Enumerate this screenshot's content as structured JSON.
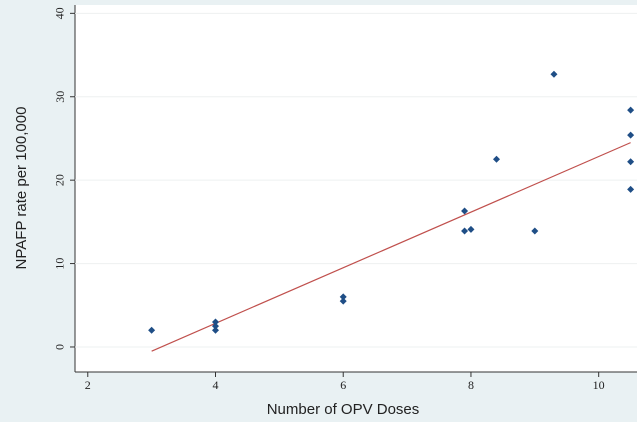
{
  "chart_data": {
    "type": "scatter",
    "x_label": "Number of OPV Doses",
    "y_label": "NPAFP rate per 100,000",
    "series": [
      {
        "color": "#1f4e86",
        "x": [
          3,
          4,
          4,
          4,
          6,
          6,
          7.9,
          7.9,
          8,
          8.4,
          9,
          9.3,
          10.5,
          10.5,
          10.5,
          10.5
        ],
        "values": [
          2,
          3,
          2.5,
          2,
          6,
          5.5,
          16.3,
          13.9,
          14.1,
          22.5,
          13.9,
          32.7,
          28.4,
          25.4,
          22.2,
          18.9
        ]
      }
    ],
    "fit_line": {
      "color": "#c0504d",
      "x": [
        3,
        10.5
      ],
      "y": [
        -0.5,
        24.5
      ]
    },
    "xlim": [
      1.8,
      10.6
    ],
    "xticks": [
      2,
      4,
      6,
      8,
      10
    ],
    "ylim": [
      -3,
      41
    ],
    "yticks": [
      0,
      10,
      20,
      30,
      40
    ],
    "grid": true
  }
}
